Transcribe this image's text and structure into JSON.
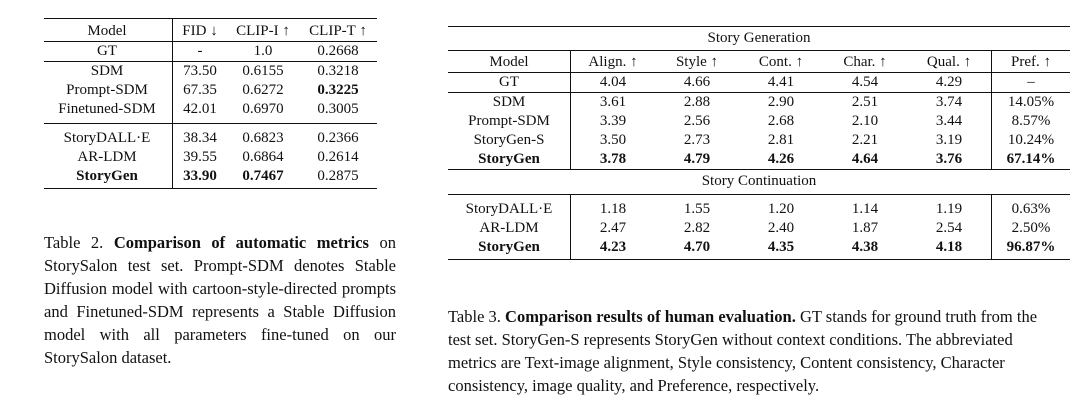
{
  "table2": {
    "header": [
      "Model",
      "FID ↓",
      "CLIP-I ↑",
      "CLIP-T ↑"
    ],
    "rows": [
      {
        "model": "GT",
        "fid": "-",
        "clip_i": "1.0",
        "clip_t": "0.2668"
      },
      {
        "model": "SDM",
        "fid": "73.50",
        "clip_i": "0.6155",
        "clip_t": "0.3218"
      },
      {
        "model": "Prompt-SDM",
        "fid": "67.35",
        "clip_i": "0.6272",
        "clip_t": "0.3225"
      },
      {
        "model": "Finetuned-SDM",
        "fid": "42.01",
        "clip_i": "0.6970",
        "clip_t": "0.3005"
      },
      {
        "model": "StoryDALL·E",
        "fid": "38.34",
        "clip_i": "0.6823",
        "clip_t": "0.2366"
      },
      {
        "model": "AR-LDM",
        "fid": "39.55",
        "clip_i": "0.6864",
        "clip_t": "0.2614"
      },
      {
        "model": "StoryGen",
        "fid": "33.90",
        "clip_i": "0.7467",
        "clip_t": "0.2875"
      }
    ],
    "caption_label": "Table 2.",
    "caption_title": "Comparison of automatic metrics",
    "caption_body": "on StorySalon test set. Prompt-SDM denotes Stable Diffusion model with cartoon-style-directed prompts and Finetuned-SDM represents a Stable Diffusion model with all parameters fine-tuned on our StorySalon dataset."
  },
  "table3": {
    "section_generation": "Story Generation",
    "section_continuation": "Story Continuation",
    "header": [
      "Model",
      "Align. ↑",
      "Style ↑",
      "Cont. ↑",
      "Char. ↑",
      "Qual. ↑",
      "Pref. ↑"
    ],
    "generation_rows": [
      {
        "model": "GT",
        "align": "4.04",
        "style": "4.66",
        "cont": "4.41",
        "char": "4.54",
        "qual": "4.29",
        "pref": "–"
      },
      {
        "model": "SDM",
        "align": "3.61",
        "style": "2.88",
        "cont": "2.90",
        "char": "2.51",
        "qual": "3.74",
        "pref": "14.05%"
      },
      {
        "model": "Prompt-SDM",
        "align": "3.39",
        "style": "2.56",
        "cont": "2.68",
        "char": "2.10",
        "qual": "3.44",
        "pref": "8.57%"
      },
      {
        "model": "StoryGen-S",
        "align": "3.50",
        "style": "2.73",
        "cont": "2.81",
        "char": "2.21",
        "qual": "3.19",
        "pref": "10.24%"
      },
      {
        "model": "StoryGen",
        "align": "3.78",
        "style": "4.79",
        "cont": "4.26",
        "char": "4.64",
        "qual": "3.76",
        "pref": "67.14%"
      }
    ],
    "continuation_rows": [
      {
        "model": "StoryDALL·E",
        "align": "1.18",
        "style": "1.55",
        "cont": "1.20",
        "char": "1.14",
        "qual": "1.19",
        "pref": "0.63%"
      },
      {
        "model": "AR-LDM",
        "align": "2.47",
        "style": "2.82",
        "cont": "2.40",
        "char": "1.87",
        "qual": "2.54",
        "pref": "2.50%"
      },
      {
        "model": "StoryGen",
        "align": "4.23",
        "style": "4.70",
        "cont": "4.35",
        "char": "4.38",
        "qual": "4.18",
        "pref": "96.87%"
      }
    ],
    "caption_label": "Table 3.",
    "caption_title": "Comparison results of human evaluation.",
    "caption_body": "GT stands for ground truth from the test set. StoryGen-S represents StoryGen without context conditions. The abbreviated metrics are Text-image alignment, Style consistency, Content consistency, Character consistency, image quality, and Preference, respectively."
  }
}
